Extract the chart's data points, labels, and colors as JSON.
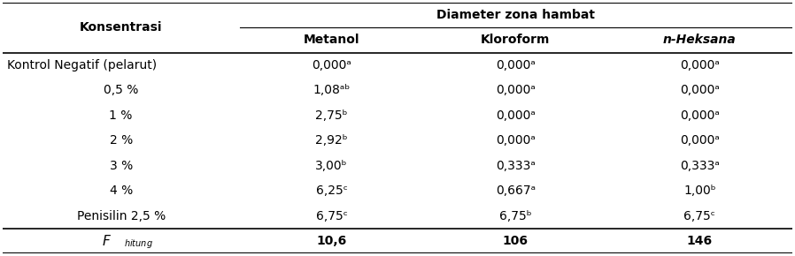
{
  "title_col1": "Konsentrasi",
  "title_col_group": "Diameter zona hambat",
  "col_headers": [
    "Metanol",
    "Kloroform",
    "n-Heksana"
  ],
  "rows": [
    {
      "label": "Kontrol Negatif (pelarut)",
      "label_align": "left",
      "values": [
        "0,000ᵃ",
        "0,000ᵃ",
        "0,000ᵃ"
      ]
    },
    {
      "label": "0,5 %",
      "label_align": "center",
      "values": [
        "1,08ᵃᵇ",
        "0,000ᵃ",
        "0,000ᵃ"
      ]
    },
    {
      "label": "1 %",
      "label_align": "center",
      "values": [
        "2,75ᵇ",
        "0,000ᵃ",
        "0,000ᵃ"
      ]
    },
    {
      "label": "2 %",
      "label_align": "center",
      "values": [
        "2,92ᵇ",
        "0,000ᵃ",
        "0,000ᵃ"
      ]
    },
    {
      "label": "3 %",
      "label_align": "center",
      "values": [
        "3,00ᵇ",
        "0,333ᵃ",
        "0,333ᵃ"
      ]
    },
    {
      "label": "4 %",
      "label_align": "center",
      "values": [
        "6,25ᶜ",
        "0,667ᵃ",
        "1,00ᵇ"
      ]
    },
    {
      "label": "Penisilin 2,5 %",
      "label_align": "center",
      "values": [
        "6,75ᶜ",
        "6,75ᵇ",
        "6,75ᶜ"
      ]
    }
  ],
  "footer_values": [
    "10,6",
    "106",
    "146"
  ],
  "bg_color": "white",
  "text_color": "black",
  "font_size": 10
}
